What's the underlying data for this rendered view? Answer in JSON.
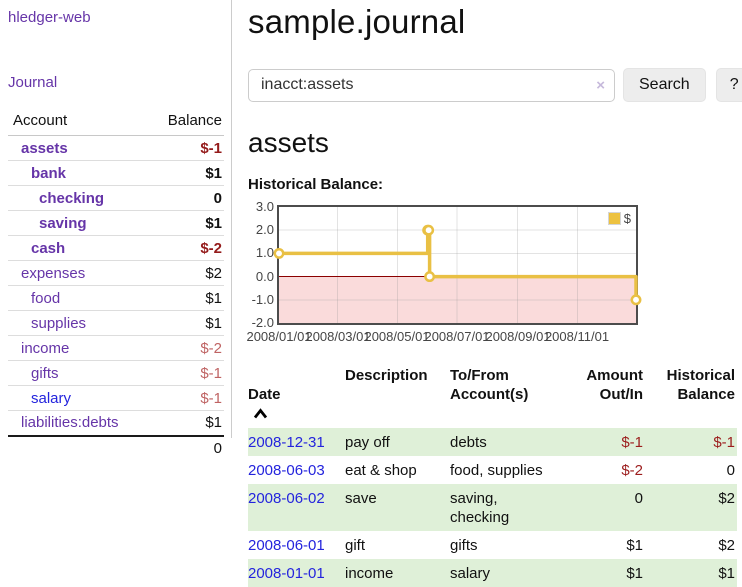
{
  "sidebar": {
    "brand": "hledger-web",
    "journal_link": "Journal",
    "headers": {
      "account": "Account",
      "balance": "Balance"
    },
    "accounts": [
      {
        "name": "assets",
        "balance": "$-1"
      },
      {
        "name": "bank",
        "balance": "$1"
      },
      {
        "name": "checking",
        "balance": "0"
      },
      {
        "name": "saving",
        "balance": "$1"
      },
      {
        "name": "cash",
        "balance": "$-2"
      },
      {
        "name": "expenses",
        "balance": "$2"
      },
      {
        "name": "food",
        "balance": "$1"
      },
      {
        "name": "supplies",
        "balance": "$1"
      },
      {
        "name": "income",
        "balance": "$-2"
      },
      {
        "name": "gifts",
        "balance": "$-1"
      },
      {
        "name": "salary",
        "balance": "$-1"
      },
      {
        "name": "liabilities:debts",
        "balance": "$1"
      }
    ],
    "total_balance": "0"
  },
  "main": {
    "title": "sample.journal",
    "search": {
      "value": "inacct:assets",
      "clear_icon": "×",
      "button_label": "Search",
      "help_label": "?"
    },
    "account_heading": "assets",
    "chart_label": "Historical Balance:"
  },
  "chart_data": {
    "type": "line",
    "step": true,
    "title": "Historical Balance",
    "series": [
      {
        "name": "$",
        "color": "#edc240",
        "points": [
          [
            "2008-01-01",
            1
          ],
          [
            "2008-06-01",
            2
          ],
          [
            "2008-06-02",
            2
          ],
          [
            "2008-06-03",
            0
          ],
          [
            "2008-12-31",
            -1
          ]
        ]
      }
    ],
    "x_range": [
      "2008-01-01",
      "2008-12-31"
    ],
    "ylim": [
      -2,
      3
    ],
    "y_ticks": [
      "3.0",
      "2.0",
      "1.0",
      "0.0",
      "-1.0",
      "-2.0"
    ],
    "x_ticks": [
      "2008/01/01",
      "2008/03/01",
      "2008/05/01",
      "2008/07/01",
      "2008/09/01",
      "2008/11/01"
    ],
    "legend_label": "$",
    "legend_position": "top-right",
    "grid": true,
    "negative_region_color": "#fadbdb",
    "zero_line_color": "#8b0000"
  },
  "register": {
    "headers": {
      "date": "Date",
      "description": "Description",
      "account": "To/From\nAccount(s)",
      "amount": "Amount\nOut/In",
      "balance": "Historical\nBalance"
    },
    "rows": [
      {
        "date": "2008-12-31",
        "description": "pay off",
        "accounts": "debts",
        "amount": "$-1",
        "balance": "$-1"
      },
      {
        "date": "2008-06-03",
        "description": "eat & shop",
        "accounts": "food, supplies",
        "amount": "$-2",
        "balance": "0"
      },
      {
        "date": "2008-06-02",
        "description": "save",
        "accounts": "saving,\nchecking",
        "amount": "0",
        "balance": "$2"
      },
      {
        "date": "2008-06-01",
        "description": "gift",
        "accounts": "gifts",
        "amount": "$1",
        "balance": "$2"
      },
      {
        "date": "2008-01-01",
        "description": "income",
        "accounts": "salary",
        "amount": "$1",
        "balance": "$1"
      }
    ]
  },
  "colors": {
    "link_purple": "#6635a8",
    "link_blue": "#2424dd",
    "negative_red": "#941b1b",
    "negative_muted_red": "#bf6363",
    "row_stripe_green": "#dff0d8",
    "series_gold": "#edc240",
    "negative_region_pink": "#fadbdb",
    "zero_line_red": "#8b0000"
  }
}
